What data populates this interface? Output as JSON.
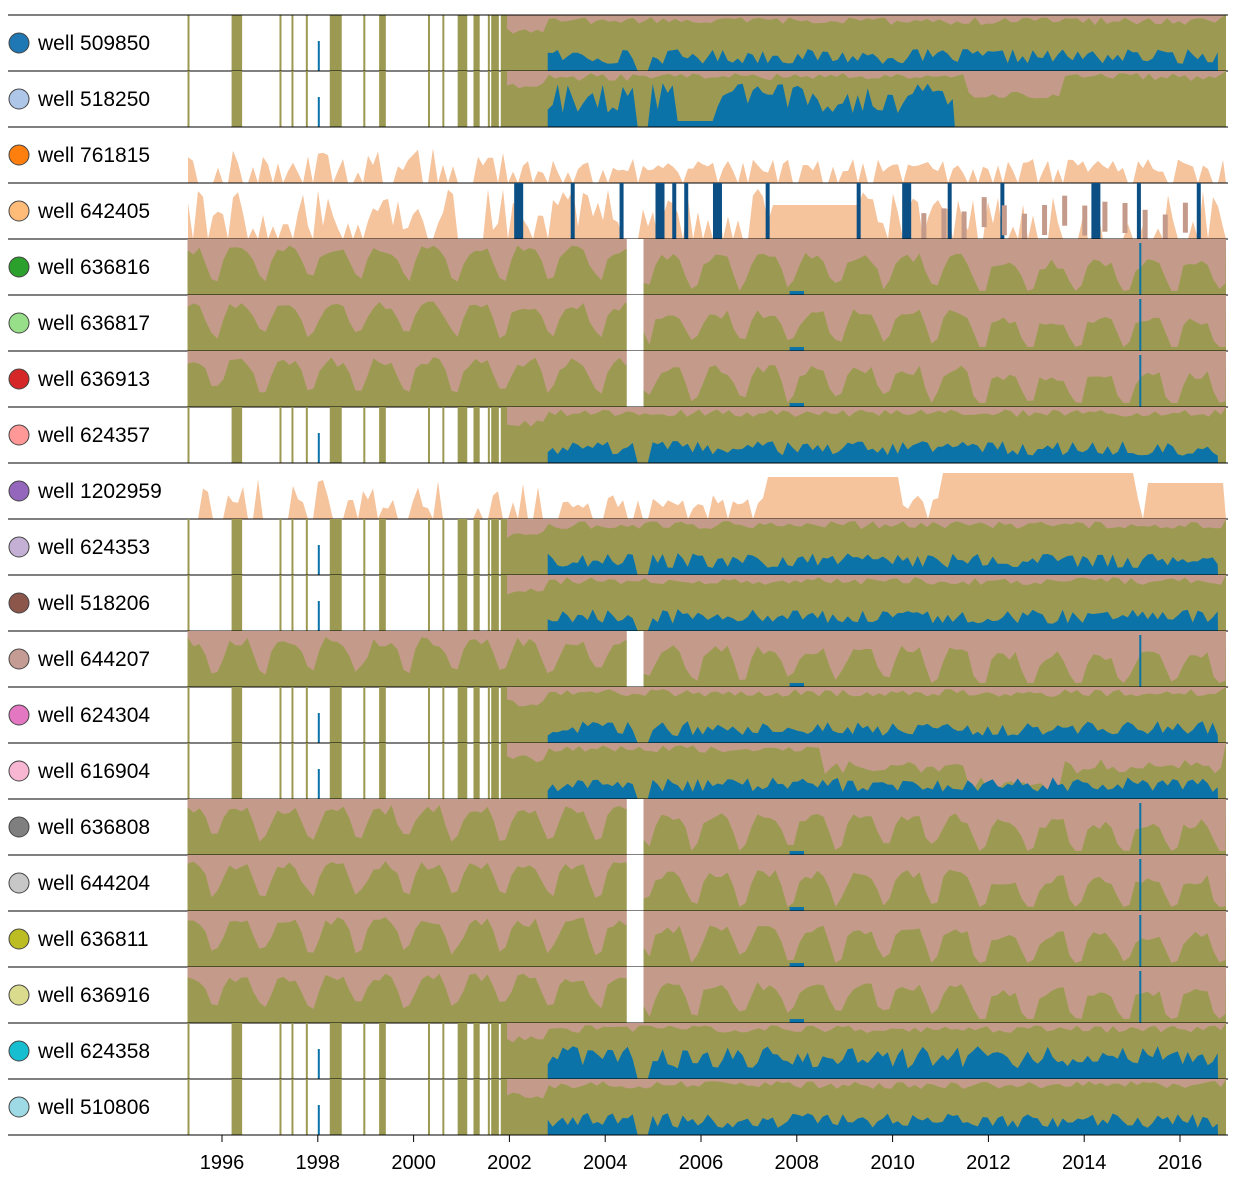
{
  "chart_data": {
    "type": "area",
    "title": "",
    "xlabel": "",
    "ylabel": "",
    "x_range": [
      1995.0,
      2016.9
    ],
    "x_ticks": [
      "1996",
      "1998",
      "2000",
      "2002",
      "2004",
      "2006",
      "2008",
      "2010",
      "2012",
      "2014",
      "2016"
    ],
    "grid": false,
    "legend_placement": "left",
    "layer_colors": {
      "olive": "#9c9a52",
      "pink": "#c49a8a",
      "peach": "#f5c39c",
      "blue": "#0b73a8"
    },
    "wells": [
      {
        "label": "well 509850",
        "color": "#1f77b4",
        "pattern": "A"
      },
      {
        "label": "well 518250",
        "color": "#aec7e8",
        "pattern": "A"
      },
      {
        "label": "well 761815",
        "color": "#ff7f0e",
        "pattern": "C"
      },
      {
        "label": "well 642405",
        "color": "#ffbb78",
        "pattern": "D"
      },
      {
        "label": "well 636816",
        "color": "#2ca02c",
        "pattern": "B"
      },
      {
        "label": "well 636817",
        "color": "#98df8a",
        "pattern": "B"
      },
      {
        "label": "well 636913",
        "color": "#d62728",
        "pattern": "B"
      },
      {
        "label": "well 624357",
        "color": "#ff9896",
        "pattern": "A"
      },
      {
        "label": "well 1202959",
        "color": "#9467bd",
        "pattern": "C"
      },
      {
        "label": "well 624353",
        "color": "#c5b0d5",
        "pattern": "A"
      },
      {
        "label": "well 518206",
        "color": "#8c564b",
        "pattern": "A"
      },
      {
        "label": "well 644207",
        "color": "#c49c94",
        "pattern": "B"
      },
      {
        "label": "well 624304",
        "color": "#e377c2",
        "pattern": "A"
      },
      {
        "label": "well 616904",
        "color": "#f7b6d2",
        "pattern": "A"
      },
      {
        "label": "well 636808",
        "color": "#7f7f7f",
        "pattern": "B"
      },
      {
        "label": "well 644204",
        "color": "#c7c7c7",
        "pattern": "B"
      },
      {
        "label": "well 636811",
        "color": "#bcbd22",
        "pattern": "B"
      },
      {
        "label": "well 636916",
        "color": "#dbdb8d",
        "pattern": "B"
      },
      {
        "label": "well 624358",
        "color": "#17becf",
        "pattern": "A"
      },
      {
        "label": "well 510806",
        "color": "#9edae5",
        "pattern": "A"
      }
    ]
  }
}
